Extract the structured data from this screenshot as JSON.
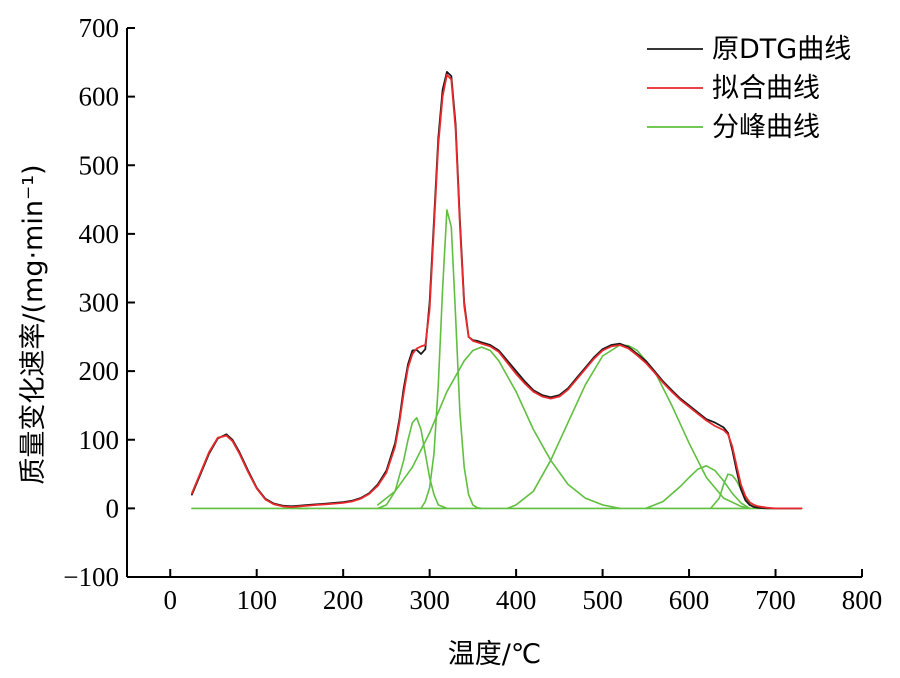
{
  "chart_data": {
    "type": "line",
    "xlabel": "温度/℃",
    "ylabel": "质量变化速率/(mg·min⁻¹)",
    "xlim": [
      -50,
      800
    ],
    "ylim": [
      -100,
      700
    ],
    "x_ticks": [
      0,
      100,
      200,
      300,
      400,
      500,
      600,
      700,
      800
    ],
    "y_ticks": [
      -100,
      0,
      100,
      200,
      300,
      400,
      500,
      600,
      700
    ],
    "x_tick_labels": [
      "0",
      "100",
      "200",
      "300",
      "400",
      "500",
      "600",
      "700",
      "800"
    ],
    "y_tick_labels": [
      "−100",
      "0",
      "100",
      "200",
      "300",
      "400",
      "500",
      "600",
      "700"
    ],
    "grid": false,
    "legend_position": "top-right",
    "series": [
      {
        "name": "原DTG曲线",
        "color": "#1a1a1a",
        "x": [
          25,
          35,
          45,
          55,
          65,
          72,
          80,
          90,
          100,
          110,
          120,
          130,
          140,
          150,
          160,
          170,
          180,
          190,
          200,
          210,
          220,
          230,
          240,
          250,
          260,
          265,
          270,
          275,
          280,
          285,
          290,
          295,
          300,
          305,
          310,
          315,
          320,
          325,
          330,
          335,
          340,
          345,
          350,
          355,
          360,
          370,
          380,
          390,
          400,
          410,
          420,
          430,
          440,
          450,
          460,
          470,
          480,
          490,
          500,
          510,
          520,
          530,
          540,
          550,
          560,
          570,
          580,
          590,
          600,
          610,
          620,
          630,
          640,
          645,
          650,
          655,
          660,
          665,
          670,
          675,
          680,
          690,
          700,
          710,
          720,
          730
        ],
        "y": [
          20,
          50,
          80,
          102,
          108,
          100,
          82,
          55,
          30,
          14,
          7,
          4,
          3,
          4,
          5,
          6,
          7,
          8,
          9,
          11,
          15,
          22,
          35,
          55,
          95,
          130,
          175,
          210,
          230,
          231,
          225,
          232,
          300,
          420,
          540,
          610,
          636,
          630,
          560,
          420,
          300,
          250,
          245,
          244,
          242,
          238,
          230,
          215,
          200,
          185,
          172,
          165,
          162,
          165,
          175,
          190,
          205,
          220,
          232,
          238,
          240,
          235,
          225,
          215,
          200,
          185,
          172,
          160,
          150,
          140,
          130,
          125,
          118,
          110,
          85,
          55,
          28,
          12,
          5,
          2,
          1,
          0,
          0,
          0,
          0,
          0
        ]
      },
      {
        "name": "拟合曲线",
        "color": "#e8292d",
        "x": [
          25,
          35,
          45,
          55,
          65,
          72,
          80,
          90,
          100,
          110,
          120,
          130,
          140,
          150,
          160,
          170,
          180,
          190,
          200,
          210,
          220,
          230,
          240,
          250,
          260,
          265,
          270,
          275,
          280,
          285,
          290,
          295,
          300,
          305,
          310,
          315,
          320,
          325,
          330,
          335,
          340,
          345,
          350,
          355,
          360,
          370,
          380,
          390,
          400,
          410,
          420,
          430,
          440,
          450,
          460,
          470,
          480,
          490,
          500,
          510,
          520,
          530,
          540,
          550,
          560,
          570,
          580,
          590,
          600,
          610,
          620,
          630,
          640,
          645,
          650,
          655,
          660,
          665,
          670,
          675,
          680,
          690,
          700,
          710,
          720,
          730
        ],
        "y": [
          22,
          52,
          82,
          103,
          106,
          98,
          80,
          53,
          29,
          13,
          6,
          3,
          2,
          3,
          4,
          5,
          6,
          7,
          8,
          10,
          14,
          21,
          33,
          52,
          90,
          125,
          168,
          205,
          225,
          233,
          236,
          238,
          290,
          410,
          530,
          600,
          632,
          625,
          552,
          412,
          295,
          250,
          244,
          242,
          240,
          236,
          228,
          212,
          196,
          182,
          170,
          163,
          160,
          163,
          173,
          188,
          203,
          218,
          230,
          236,
          238,
          233,
          223,
          212,
          198,
          183,
          170,
          158,
          148,
          138,
          128,
          120,
          114,
          108,
          90,
          62,
          35,
          18,
          9,
          5,
          3,
          1,
          0,
          0,
          0,
          0
        ]
      },
      {
        "name": "分峰曲线",
        "color": "#5fbf3f",
        "x": [
          25,
          35,
          45,
          55,
          65,
          72,
          80,
          90,
          100,
          110,
          120,
          130,
          140,
          150,
          160
        ],
        "y": [
          22,
          52,
          82,
          103,
          106,
          98,
          80,
          53,
          29,
          13,
          6,
          3,
          1,
          0,
          0
        ]
      },
      {
        "name": "",
        "color": "#5fbf3f",
        "x": [
          240,
          250,
          260,
          270,
          275,
          280,
          285,
          290,
          295,
          300,
          305,
          310,
          320
        ],
        "y": [
          0,
          5,
          25,
          70,
          100,
          125,
          132,
          115,
          80,
          45,
          20,
          5,
          0
        ]
      },
      {
        "name": "",
        "color": "#5fbf3f",
        "x": [
          290,
          295,
          300,
          305,
          310,
          315,
          320,
          325,
          330,
          335,
          340,
          345,
          350,
          355,
          360
        ],
        "y": [
          0,
          10,
          30,
          80,
          180,
          320,
          435,
          410,
          280,
          140,
          60,
          20,
          5,
          1,
          0
        ]
      },
      {
        "name": "",
        "color": "#5fbf3f",
        "x": [
          240,
          260,
          280,
          300,
          320,
          340,
          350,
          360,
          370,
          380,
          400,
          420,
          440,
          460,
          480,
          500,
          520
        ],
        "y": [
          5,
          25,
          60,
          110,
          170,
          215,
          230,
          235,
          230,
          215,
          170,
          115,
          70,
          35,
          15,
          5,
          0
        ]
      },
      {
        "name": "",
        "color": "#5fbf3f",
        "x": [
          390,
          400,
          420,
          440,
          460,
          480,
          500,
          520,
          530,
          540,
          560,
          580,
          600,
          620,
          640,
          660,
          670
        ],
        "y": [
          0,
          5,
          25,
          70,
          125,
          180,
          222,
          238,
          237,
          230,
          200,
          150,
          95,
          45,
          15,
          3,
          0
        ]
      },
      {
        "name": "",
        "color": "#5fbf3f",
        "x": [
          550,
          570,
          590,
          600,
          610,
          620,
          630,
          640,
          650,
          660,
          670
        ],
        "y": [
          0,
          10,
          32,
          45,
          57,
          62,
          55,
          40,
          22,
          8,
          0
        ]
      },
      {
        "name": "",
        "color": "#5fbf3f",
        "x": [
          625,
          635,
          640,
          645,
          650,
          655,
          660,
          665,
          670,
          675,
          680
        ],
        "y": [
          0,
          15,
          35,
          50,
          48,
          40,
          28,
          15,
          6,
          2,
          0
        ]
      },
      {
        "name": "",
        "color": "#5fbf3f",
        "x": [
          25,
          730
        ],
        "y": [
          0,
          0
        ]
      }
    ]
  }
}
